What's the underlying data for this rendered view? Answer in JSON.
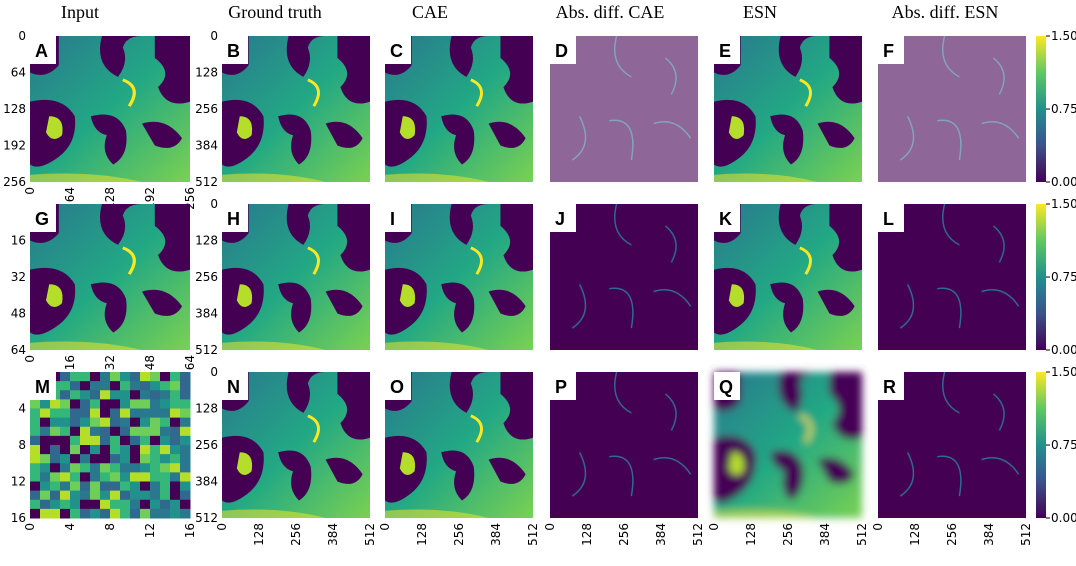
{
  "columns": [
    "Input",
    "Ground truth",
    "CAE",
    "Abs. diff. CAE",
    "ESN",
    "Abs. diff. ESN"
  ],
  "rows": [
    {
      "letters": [
        "A",
        "B",
        "C",
        "D",
        "E",
        "F"
      ],
      "input_yticks": [
        "0",
        "64",
        "128",
        "192",
        "256"
      ],
      "input_xticks": [
        "0",
        "64",
        "128",
        "192",
        "256"
      ],
      "yticks": [
        "0",
        "128",
        "256",
        "384",
        "512"
      ]
    },
    {
      "letters": [
        "G",
        "H",
        "I",
        "J",
        "K",
        "L"
      ],
      "input_yticks": [
        "16",
        "32",
        "48",
        "64"
      ],
      "input_xticks": [
        "0",
        "16",
        "32",
        "48",
        "64"
      ],
      "yticks": [
        "0",
        "128",
        "256",
        "384",
        "512"
      ]
    },
    {
      "letters": [
        "M",
        "N",
        "O",
        "P",
        "Q",
        "R"
      ],
      "input_yticks": [
        "4",
        "8",
        "12",
        "16"
      ],
      "input_xticks": [
        "0",
        "4",
        "8",
        "12",
        "16"
      ],
      "yticks": [
        "0",
        "128",
        "256",
        "384",
        "512"
      ]
    }
  ],
  "xticks": [
    "0",
    "128",
    "256",
    "384",
    "512"
  ],
  "colorbar_ticks": [
    "1.50",
    "0.75",
    "0.00"
  ]
}
